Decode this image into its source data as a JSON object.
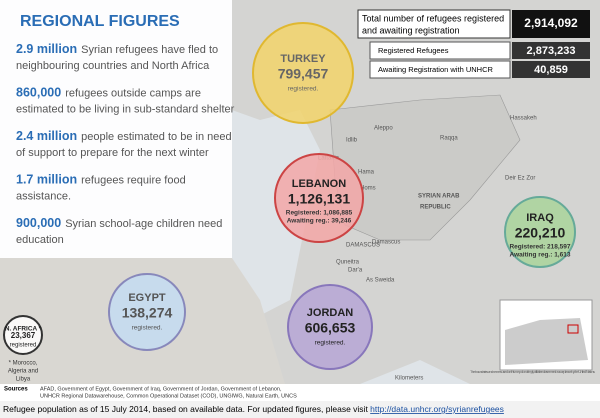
{
  "header": {
    "title": "REGIONAL FIGURES"
  },
  "facts": [
    {
      "highlight": "2.9 million",
      "line1": "Syrian refugees have fled to",
      "line2": "neighbouring countries and North Africa"
    },
    {
      "highlight": "860,000",
      "line1": "refugees outside camps are",
      "line2": "estimated to be living in sub-standard shelter"
    },
    {
      "highlight": "2.4 million",
      "line1": "people estimated to be in need",
      "line2": "of support to prepare for the next winter"
    },
    {
      "highlight": "1.7 million",
      "line1": "refugees require food",
      "line2": "assistance."
    },
    {
      "highlight": "900,000",
      "line1": "Syrian school-age children need",
      "line2": "education"
    }
  ],
  "totals": {
    "total_label1": "Total number of refugees registered",
    "total_label2": "and awaiting registration",
    "total_value": "2,914,092",
    "registered_label": "Registered Refugees",
    "registered_value": "2,873,233",
    "awaiting_label": "Awaiting Registration with UNHCR",
    "awaiting_value": "40,859"
  },
  "countries": {
    "turkey": {
      "name": "TURKEY",
      "value": "799,457",
      "note": "registered."
    },
    "lebanon": {
      "name": "LEBANON",
      "value": "1,126,131",
      "registered": "Registered: 1,086,885",
      "awaiting": "Awaiting reg.: 39,246"
    },
    "iraq": {
      "name": "IRAQ",
      "value": "220,210",
      "registered": "Registered: 218,597",
      "awaiting": "Awaiting reg.: 1,613"
    },
    "jordan": {
      "name": "JORDAN",
      "value": "606,653",
      "note": "registered."
    },
    "egypt": {
      "name": "EGYPT",
      "value": "138,274",
      "note": "registered."
    },
    "north_africa": {
      "name": "N. AFRICA *",
      "value": "23,367",
      "note": "registered",
      "footnote1": "* Morocco,",
      "footnote2": "Algeria and",
      "footnote3": "Libya"
    }
  },
  "map_labels": {
    "aleppo": "Aleppo",
    "idlib": "Idlib",
    "raqqa": "Raqqa",
    "hassakeh": "Hassakeh",
    "lattakia": "Lattakia",
    "hama": "Hama",
    "homs": "Homs",
    "tartus": "Tartus",
    "deir": "Deir Ez Zor",
    "country1": "SYRIAN ARAB",
    "country2": "REPUBLIC",
    "damascus_cap": "DAMASCUS",
    "damascus": "Damascus",
    "quneitra": "Quneitra",
    "daraa": "Dar'a",
    "sweida": "As Sweida",
    "north": "N",
    "km": "Kilometers",
    "disclaimer": "The boundaries and names used on this map do not imply official endorsement or acceptance by the United Nations"
  },
  "sources": {
    "label": "Sources",
    "line1": "AFAD, Government of  Egypt, Government of Iraq, Government of Jordan, Government of Lebanon,",
    "line2": "UNHCR Regional Datawarehouse, Common Operational Dataset (COD), UNGIWG, Natural Earth, UNCS"
  },
  "footer": {
    "text": "Refugee population as of 15 July 2014, based on available data. For updated figures, please visit ",
    "link": "http://data.unhcr.org/syrianrefugees"
  }
}
